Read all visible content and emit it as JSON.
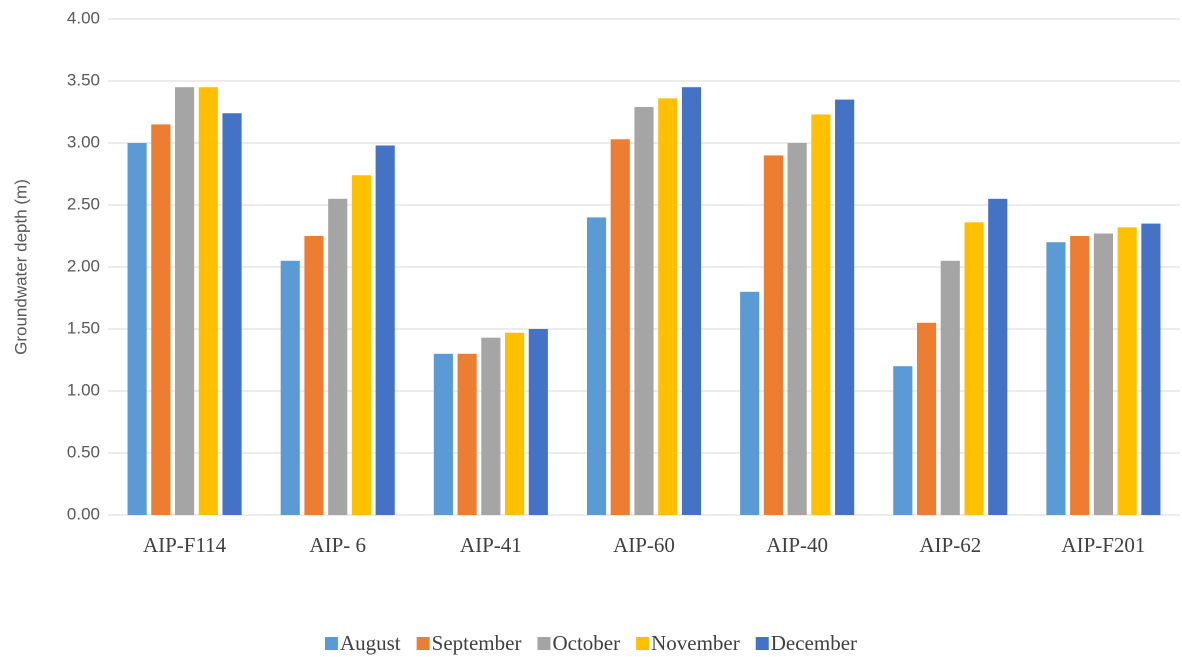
{
  "chart_data": {
    "type": "bar",
    "y_label": "Groundwater depth (m)",
    "categories": [
      "AIP-F114",
      "AIP- 6",
      "AIP-41",
      "AIP-60",
      "AIP-40",
      "AIP-62",
      "AIP-F201"
    ],
    "series": [
      {
        "name": "August",
        "color": "#5b9bd5",
        "values": [
          3.0,
          2.05,
          1.3,
          2.4,
          1.8,
          1.2,
          2.2
        ]
      },
      {
        "name": "September",
        "color": "#ed7d31",
        "values": [
          3.15,
          2.25,
          1.3,
          3.03,
          2.9,
          1.55,
          2.25
        ]
      },
      {
        "name": "October",
        "color": "#a5a5a5",
        "values": [
          3.45,
          2.55,
          1.43,
          3.29,
          3.0,
          2.05,
          2.27
        ]
      },
      {
        "name": "November",
        "color": "#ffc000",
        "values": [
          3.45,
          2.74,
          1.47,
          3.36,
          3.23,
          2.36,
          2.32
        ]
      },
      {
        "name": "December",
        "color": "#4472c4",
        "values": [
          3.24,
          2.98,
          1.5,
          3.45,
          3.35,
          2.55,
          2.35
        ]
      }
    ],
    "ylim": [
      0,
      4
    ],
    "yticks": [
      {
        "value": 0,
        "label": "0.00"
      },
      {
        "value": 0.5,
        "label": "0.50"
      },
      {
        "value": 1,
        "label": "1.00"
      },
      {
        "value": 1.5,
        "label": "1.50"
      },
      {
        "value": 2,
        "label": "2.00"
      },
      {
        "value": 2.5,
        "label": "2.50"
      },
      {
        "value": 3,
        "label": "3.00"
      },
      {
        "value": 3.5,
        "label": "3.50"
      },
      {
        "value": 4,
        "label": "4.00"
      }
    ],
    "grid": true,
    "legend": "bottom"
  }
}
